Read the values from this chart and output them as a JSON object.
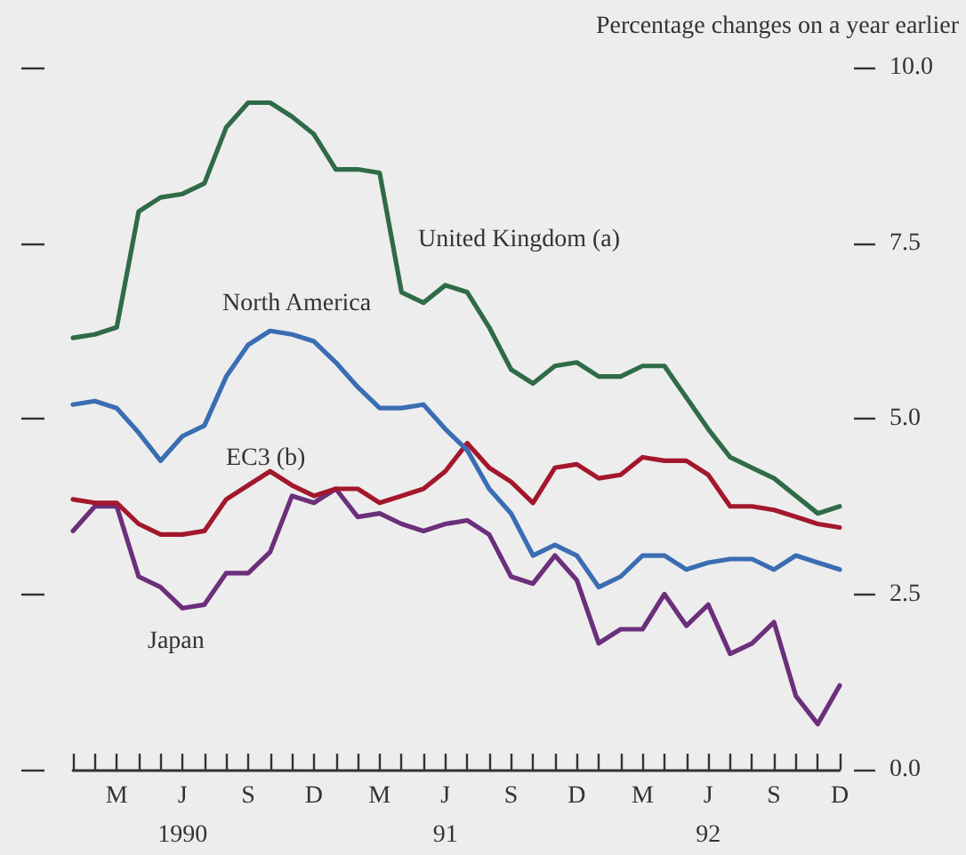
{
  "chart_data": {
    "type": "line",
    "ylabel": "Percentage changes on a year earlier",
    "categories": [
      null,
      null,
      "M",
      null,
      null,
      "J\n1990",
      null,
      null,
      "S",
      null,
      null,
      "D",
      null,
      null,
      "M",
      null,
      null,
      "J\n91",
      null,
      null,
      "S",
      null,
      null,
      "D",
      null,
      null,
      "M",
      null,
      null,
      "J\n92",
      null,
      null,
      "S",
      null,
      null,
      "D"
    ],
    "series": [
      {
        "name": "United Kingdom (a)",
        "color": "#2f6b47",
        "values": [
          6.15,
          6.2,
          6.3,
          7.95,
          8.15,
          8.2,
          8.35,
          9.15,
          9.5,
          9.5,
          9.3,
          9.05,
          8.55,
          8.55,
          8.5,
          6.8,
          6.65,
          6.9,
          6.8,
          6.3,
          5.7,
          5.5,
          5.75,
          5.8,
          5.6,
          5.6,
          5.75,
          5.75,
          5.3,
          4.85,
          4.45,
          4.3,
          4.15,
          3.9,
          3.65,
          3.75
        ]
      },
      {
        "name": "North America",
        "color": "#3a6db3",
        "values": [
          5.2,
          5.25,
          5.15,
          4.8,
          4.4,
          4.75,
          4.9,
          5.6,
          6.05,
          6.25,
          6.2,
          6.1,
          5.8,
          5.45,
          5.15,
          5.15,
          5.2,
          4.85,
          4.55,
          4.0,
          3.65,
          3.05,
          3.2,
          3.05,
          2.6,
          2.75,
          3.05,
          3.05,
          2.85,
          2.95,
          3.0,
          3.0,
          2.85,
          3.05,
          2.95,
          2.85
        ]
      },
      {
        "name": "EC3 (b)",
        "color": "#a3172c",
        "values": [
          3.85,
          3.8,
          3.8,
          3.5,
          3.35,
          3.35,
          3.4,
          3.85,
          4.05,
          4.25,
          4.05,
          3.9,
          4.0,
          4.0,
          3.8,
          3.9,
          4.0,
          4.25,
          4.65,
          4.3,
          4.1,
          3.8,
          4.3,
          4.35,
          4.15,
          4.2,
          4.45,
          4.4,
          4.4,
          4.2,
          3.75,
          3.75,
          3.7,
          3.6,
          3.5,
          3.45
        ]
      },
      {
        "name": "Japan",
        "color": "#6b2f7b",
        "values": [
          3.4,
          3.75,
          3.75,
          2.75,
          2.6,
          2.3,
          2.35,
          2.8,
          2.8,
          3.1,
          3.9,
          3.8,
          4.0,
          3.6,
          3.65,
          3.5,
          3.4,
          3.5,
          3.55,
          3.35,
          2.75,
          2.65,
          3.05,
          2.7,
          1.8,
          2.0,
          2.0,
          2.5,
          2.05,
          2.35,
          1.65,
          1.8,
          2.1,
          1.05,
          0.65,
          1.2
        ]
      }
    ],
    "ylim": [
      0,
      10
    ],
    "yticks": [
      {
        "value": 0,
        "label": "0.0"
      },
      {
        "value": 2.5,
        "label": "2.5"
      },
      {
        "value": 5,
        "label": "5.0"
      },
      {
        "value": 7.5,
        "label": "7.5"
      },
      {
        "value": 10,
        "label": "10.0"
      }
    ],
    "marker": "none",
    "line_style": "solid",
    "grid": false,
    "legend": false
  }
}
